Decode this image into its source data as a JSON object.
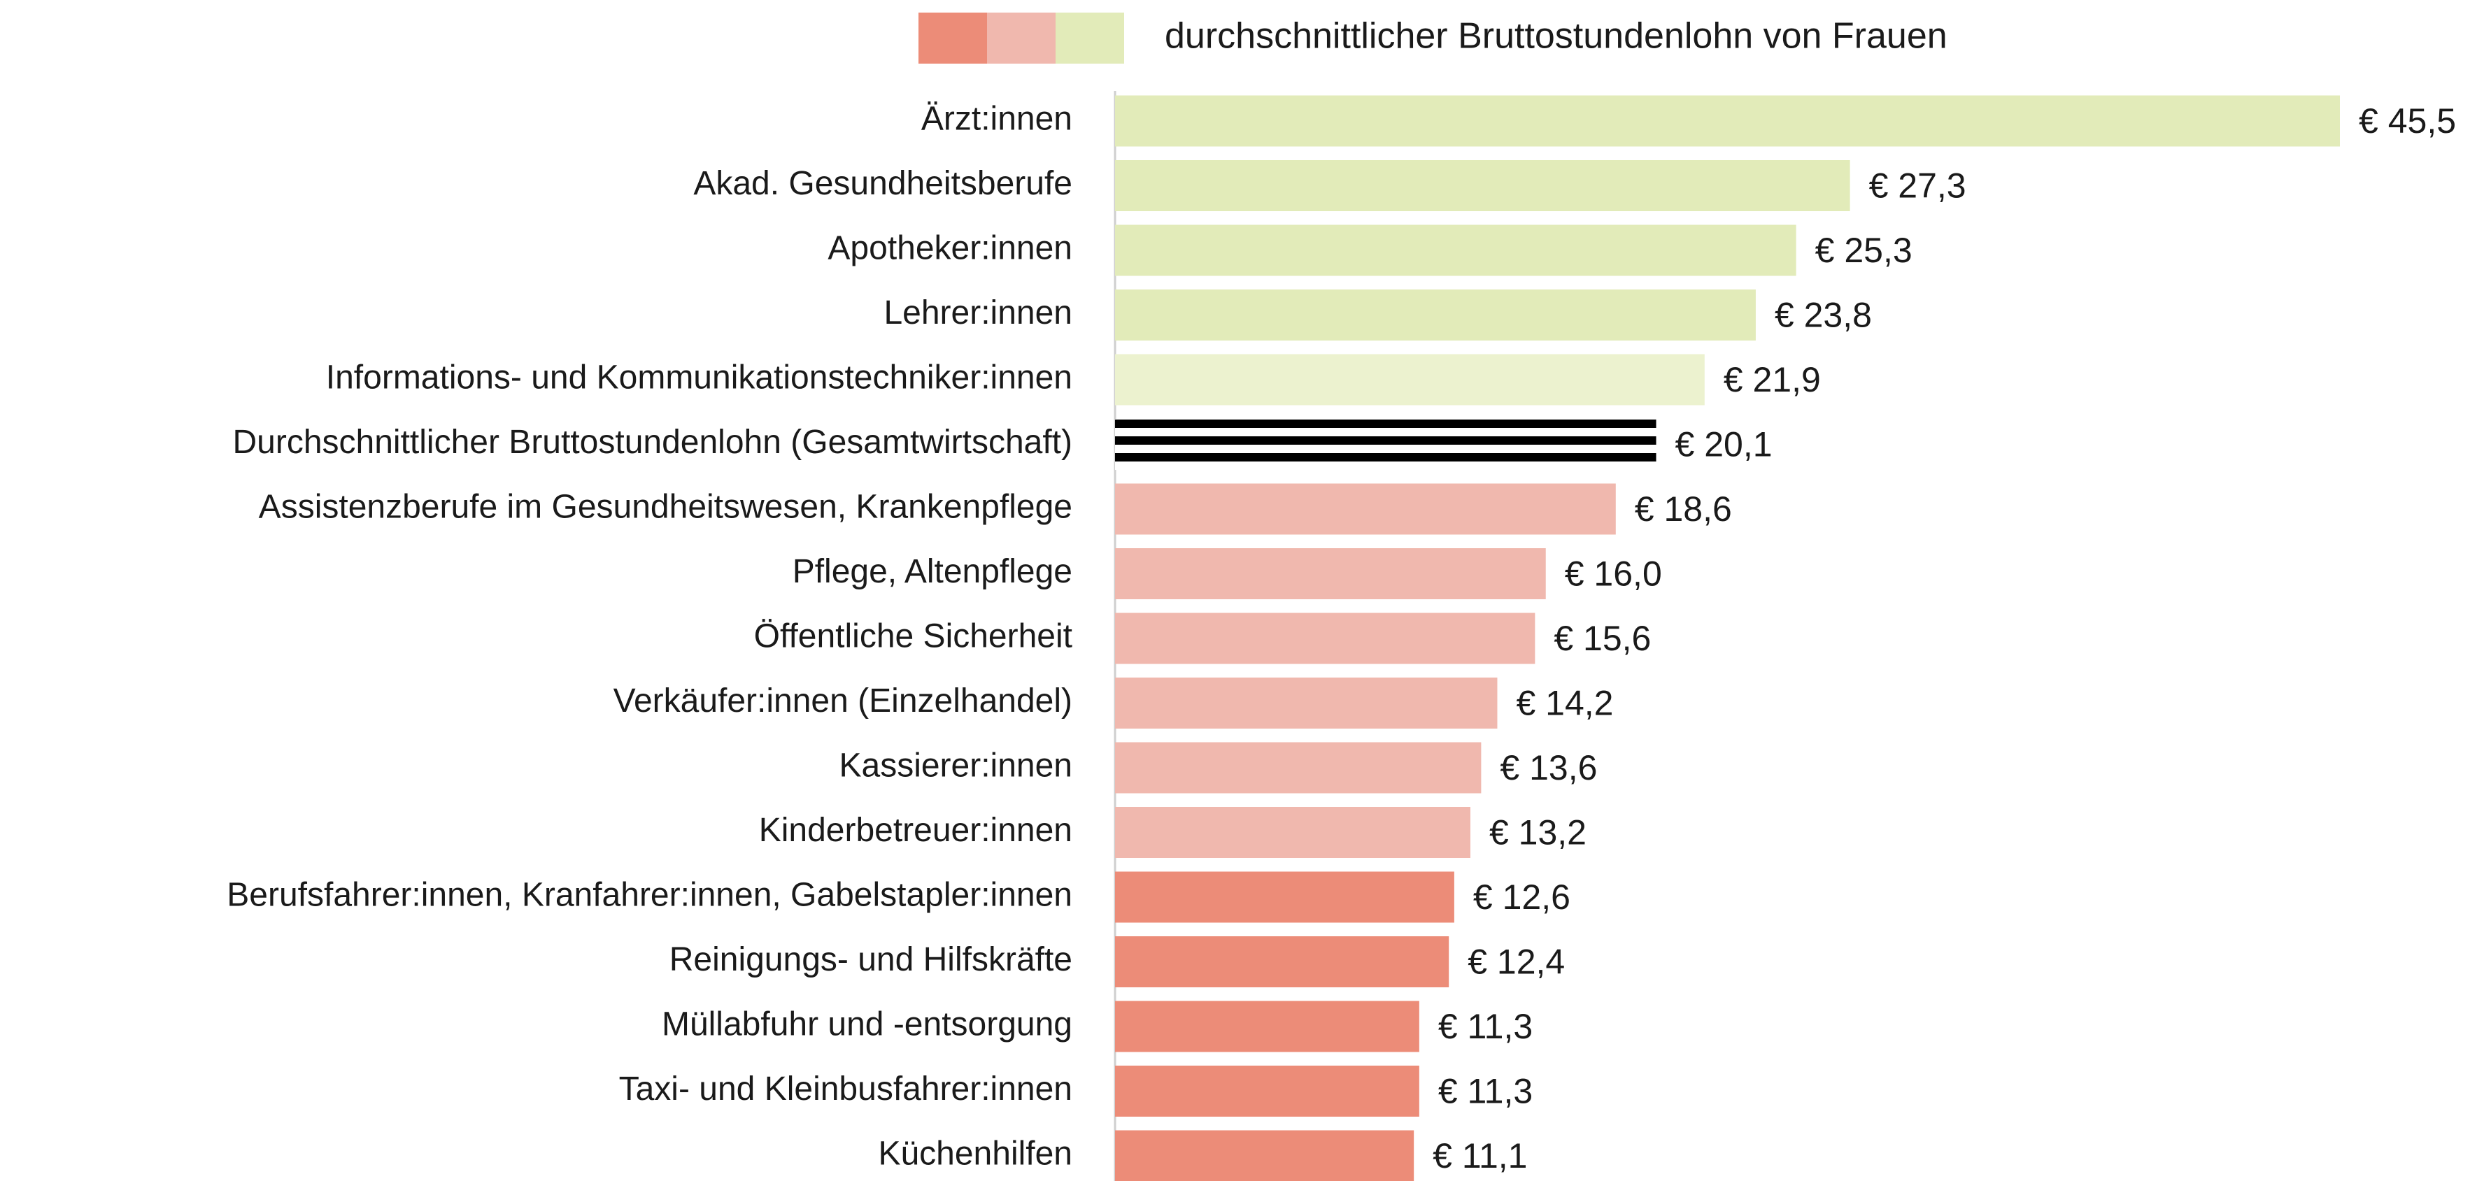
{
  "chart_data": {
    "type": "bar",
    "orientation": "horizontal",
    "legend": {
      "colors": [
        "#ec8c78",
        "#f0b8ae",
        "#e2ebb9"
      ],
      "label": "durchschnittlicher Bruttostundenlohn von Frauen"
    },
    "categories": [
      "Ärzt:innen",
      "Akad. Gesundheitsberufe",
      "Apotheker:innen",
      "Lehrer:innen",
      "Informations- und Kommunikationstechniker:innen",
      "Durchschnittlicher Bruttostundenlohn (Gesamtwirtschaft)",
      "Assistenzberufe im Gesundheitswesen, Krankenpflege",
      "Pflege, Altenpflege",
      "Öffentliche Sicherheit",
      "Verkäufer:innen (Einzelhandel)",
      "Kassierer:innen",
      "Kinderbetreuer:innen",
      "Berufsfahrer:innen, Kranfahrer:innen, Gabelstapler:innen",
      "Reinigungs- und Hilfskräfte",
      "Müllabfuhr und -entsorgung",
      "Taxi- und Kleinbusfahrer:innen",
      "Küchenhilfen"
    ],
    "values": [
      45.5,
      27.3,
      25.3,
      23.8,
      21.9,
      20.1,
      18.6,
      16.0,
      15.6,
      14.2,
      13.6,
      13.2,
      12.6,
      12.4,
      11.3,
      11.3,
      11.1
    ],
    "value_labels": [
      "€ 45,5",
      "€ 27,3",
      "€ 25,3",
      "€ 23,8",
      "€ 21,9",
      "€ 20,1",
      "€ 18,6",
      "€ 16,0",
      "€ 15,6",
      "€ 14,2",
      "€ 13,6",
      "€ 13,2",
      "€ 12,6",
      "€ 12,4",
      "€ 11,3",
      "€ 11,3",
      "€ 11,1"
    ],
    "colors": [
      "#e2ebb9",
      "#e2ebb9",
      "#e2ebb9",
      "#e2ebb9",
      "#ecf2cf",
      "#c4c4c4",
      "#f0b8ae",
      "#f0b8ae",
      "#f0b8ae",
      "#f0b8ae",
      "#f0b8ae",
      "#f0b8ae",
      "#ec8c78",
      "#ec8c78",
      "#ec8c78",
      "#ec8c78",
      "#ec8c78"
    ],
    "hatched": [
      5
    ]
  }
}
